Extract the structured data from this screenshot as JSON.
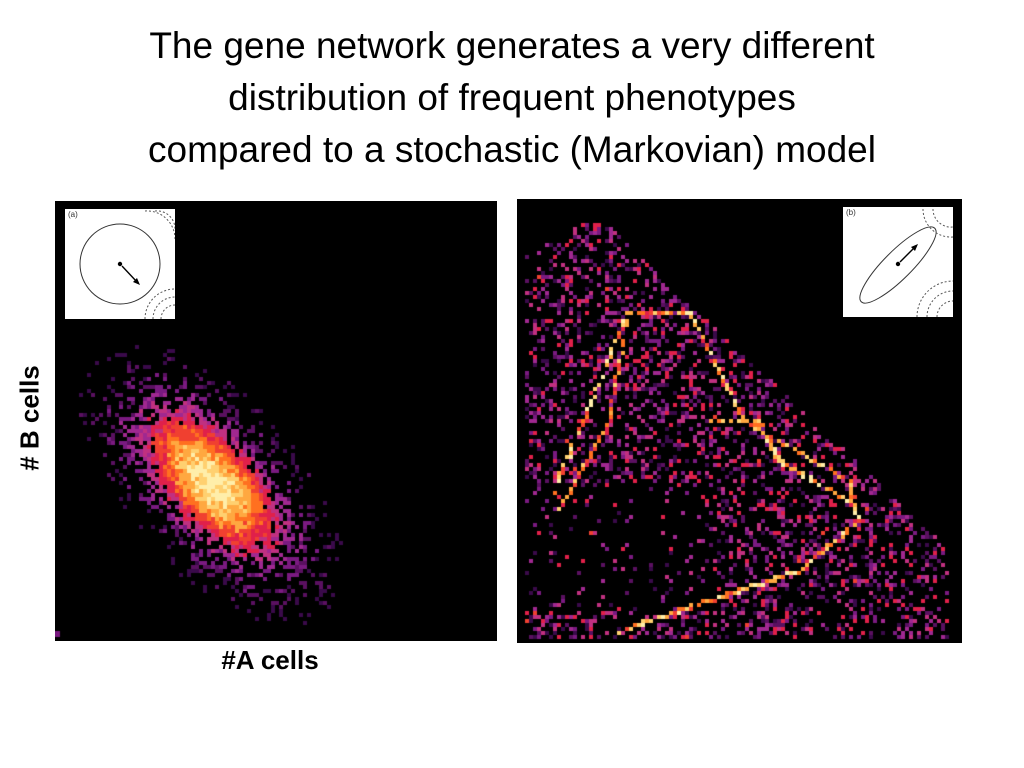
{
  "slide": {
    "title_lines": [
      "The gene network generates a very different",
      "distribution of  frequent phenotypes",
      "compared to a stochastic (Markovian) model"
    ],
    "ylabel": "# B cells",
    "xlabel": "#A cells"
  },
  "panels": [
    {
      "id": "a",
      "inset_label": "(a)",
      "description_colormap": "inferno-like heatmap",
      "colors": [
        "#3a0a4a",
        "#7a1a80",
        "#b0309a",
        "#e0204a",
        "#ff6a20",
        "#ffb040",
        "#ffe090"
      ]
    },
    {
      "id": "b",
      "inset_label": "(b)"
    }
  ]
}
